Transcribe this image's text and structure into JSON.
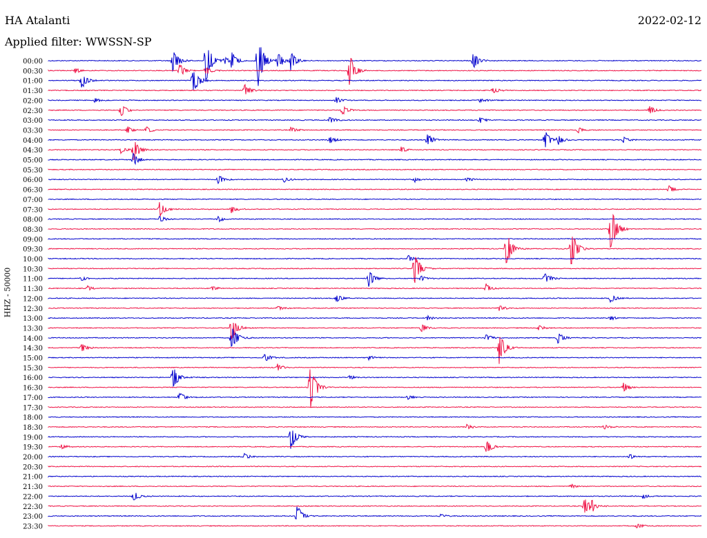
{
  "header": {
    "station": "HA Atalanti",
    "date": "2022-02-12",
    "filter": "Applied filter: WWSSN-SP"
  },
  "chart_data": {
    "type": "line",
    "title": "HA Atalanti",
    "subtitle": "Applied filter: WWSSN-SP",
    "ylabel": "HHZ - 50000",
    "xlabel": "",
    "colors": [
      "#0000cc",
      "#ee1144"
    ],
    "row_labels": [
      "00:00",
      "00:30",
      "01:00",
      "01:30",
      "02:00",
      "02:30",
      "03:00",
      "03:30",
      "04:00",
      "04:30",
      "05:00",
      "05:30",
      "06:00",
      "06:30",
      "07:00",
      "07:30",
      "08:00",
      "08:30",
      "09:00",
      "09:30",
      "10:00",
      "10:30",
      "11:00",
      "11:30",
      "12:00",
      "12:30",
      "13:00",
      "13:30",
      "14:00",
      "14:30",
      "15:00",
      "15:30",
      "16:00",
      "16:30",
      "17:00",
      "17:30",
      "18:00",
      "18:30",
      "19:00",
      "19:30",
      "20:00",
      "20:30",
      "21:00",
      "21:30",
      "22:00",
      "22:30",
      "23:00",
      "23:30"
    ],
    "events": [
      {
        "row": 0,
        "pos": 0.19,
        "amp": 18
      },
      {
        "row": 0,
        "pos": 0.24,
        "amp": 38
      },
      {
        "row": 0,
        "pos": 0.27,
        "amp": 6
      },
      {
        "row": 0,
        "pos": 0.28,
        "amp": 14
      },
      {
        "row": 0,
        "pos": 0.32,
        "amp": 45
      },
      {
        "row": 0,
        "pos": 0.35,
        "amp": 16
      },
      {
        "row": 0,
        "pos": 0.37,
        "amp": 18
      },
      {
        "row": 0,
        "pos": 0.65,
        "amp": 14
      },
      {
        "row": 1,
        "pos": 0.04,
        "amp": 5
      },
      {
        "row": 1,
        "pos": 0.2,
        "amp": 12
      },
      {
        "row": 1,
        "pos": 0.24,
        "amp": 8
      },
      {
        "row": 1,
        "pos": 0.46,
        "amp": 30
      },
      {
        "row": 2,
        "pos": 0.05,
        "amp": 14
      },
      {
        "row": 2,
        "pos": 0.22,
        "amp": 25
      },
      {
        "row": 3,
        "pos": 0.3,
        "amp": 10
      },
      {
        "row": 3,
        "pos": 0.68,
        "amp": 5
      },
      {
        "row": 4,
        "pos": 0.07,
        "amp": 4
      },
      {
        "row": 4,
        "pos": 0.44,
        "amp": 6
      },
      {
        "row": 4,
        "pos": 0.66,
        "amp": 4
      },
      {
        "row": 5,
        "pos": 0.11,
        "amp": 12
      },
      {
        "row": 5,
        "pos": 0.45,
        "amp": 8
      },
      {
        "row": 5,
        "pos": 0.92,
        "amp": 8
      },
      {
        "row": 6,
        "pos": 0.43,
        "amp": 6
      },
      {
        "row": 6,
        "pos": 0.66,
        "amp": 5
      },
      {
        "row": 7,
        "pos": 0.12,
        "amp": 6
      },
      {
        "row": 7,
        "pos": 0.15,
        "amp": 6
      },
      {
        "row": 7,
        "pos": 0.37,
        "amp": 6
      },
      {
        "row": 7,
        "pos": 0.81,
        "amp": 6
      },
      {
        "row": 8,
        "pos": 0.43,
        "amp": 6
      },
      {
        "row": 8,
        "pos": 0.58,
        "amp": 10
      },
      {
        "row": 8,
        "pos": 0.76,
        "amp": 14
      },
      {
        "row": 8,
        "pos": 0.78,
        "amp": 8
      },
      {
        "row": 8,
        "pos": 0.88,
        "amp": 5
      },
      {
        "row": 9,
        "pos": 0.11,
        "amp": 6
      },
      {
        "row": 9,
        "pos": 0.13,
        "amp": 18
      },
      {
        "row": 9,
        "pos": 0.54,
        "amp": 5
      },
      {
        "row": 10,
        "pos": 0.13,
        "amp": 10
      },
      {
        "row": 12,
        "pos": 0.26,
        "amp": 8
      },
      {
        "row": 12,
        "pos": 0.36,
        "amp": 5
      },
      {
        "row": 12,
        "pos": 0.56,
        "amp": 4
      },
      {
        "row": 12,
        "pos": 0.64,
        "amp": 4
      },
      {
        "row": 13,
        "pos": 0.95,
        "amp": 6
      },
      {
        "row": 15,
        "pos": 0.17,
        "amp": 12
      },
      {
        "row": 15,
        "pos": 0.28,
        "amp": 6
      },
      {
        "row": 16,
        "pos": 0.17,
        "amp": 5
      },
      {
        "row": 16,
        "pos": 0.26,
        "amp": 5
      },
      {
        "row": 17,
        "pos": 0.86,
        "amp": 40
      },
      {
        "row": 19,
        "pos": 0.7,
        "amp": 30
      },
      {
        "row": 19,
        "pos": 0.8,
        "amp": 30
      },
      {
        "row": 20,
        "pos": 0.55,
        "amp": 6
      },
      {
        "row": 21,
        "pos": 0.56,
        "amp": 30
      },
      {
        "row": 22,
        "pos": 0.05,
        "amp": 4
      },
      {
        "row": 22,
        "pos": 0.49,
        "amp": 14
      },
      {
        "row": 22,
        "pos": 0.57,
        "amp": 5
      },
      {
        "row": 22,
        "pos": 0.76,
        "amp": 10
      },
      {
        "row": 23,
        "pos": 0.06,
        "amp": 4
      },
      {
        "row": 23,
        "pos": 0.25,
        "amp": 4
      },
      {
        "row": 23,
        "pos": 0.67,
        "amp": 8
      },
      {
        "row": 24,
        "pos": 0.44,
        "amp": 8
      },
      {
        "row": 24,
        "pos": 0.86,
        "amp": 8
      },
      {
        "row": 25,
        "pos": 0.35,
        "amp": 5
      },
      {
        "row": 25,
        "pos": 0.69,
        "amp": 5
      },
      {
        "row": 26,
        "pos": 0.58,
        "amp": 4
      },
      {
        "row": 26,
        "pos": 0.86,
        "amp": 4
      },
      {
        "row": 27,
        "pos": 0.28,
        "amp": 20
      },
      {
        "row": 27,
        "pos": 0.57,
        "amp": 8
      },
      {
        "row": 27,
        "pos": 0.75,
        "amp": 5
      },
      {
        "row": 28,
        "pos": 0.28,
        "amp": 22
      },
      {
        "row": 28,
        "pos": 0.67,
        "amp": 6
      },
      {
        "row": 28,
        "pos": 0.78,
        "amp": 10
      },
      {
        "row": 29,
        "pos": 0.05,
        "amp": 8
      },
      {
        "row": 29,
        "pos": 0.69,
        "amp": 26
      },
      {
        "row": 30,
        "pos": 0.33,
        "amp": 8
      },
      {
        "row": 30,
        "pos": 0.49,
        "amp": 4
      },
      {
        "row": 31,
        "pos": 0.35,
        "amp": 6
      },
      {
        "row": 32,
        "pos": 0.19,
        "amp": 20
      },
      {
        "row": 32,
        "pos": 0.46,
        "amp": 4
      },
      {
        "row": 33,
        "pos": 0.4,
        "amp": 40
      },
      {
        "row": 33,
        "pos": 0.88,
        "amp": 8
      },
      {
        "row": 34,
        "pos": 0.2,
        "amp": 8
      },
      {
        "row": 34,
        "pos": 0.55,
        "amp": 4
      },
      {
        "row": 37,
        "pos": 0.64,
        "amp": 5
      },
      {
        "row": 37,
        "pos": 0.85,
        "amp": 4
      },
      {
        "row": 38,
        "pos": 0.37,
        "amp": 24
      },
      {
        "row": 39,
        "pos": 0.02,
        "amp": 4
      },
      {
        "row": 39,
        "pos": 0.67,
        "amp": 12
      },
      {
        "row": 40,
        "pos": 0.3,
        "amp": 5
      },
      {
        "row": 40,
        "pos": 0.89,
        "amp": 5
      },
      {
        "row": 43,
        "pos": 0.8,
        "amp": 4
      },
      {
        "row": 44,
        "pos": 0.13,
        "amp": 8
      },
      {
        "row": 44,
        "pos": 0.91,
        "amp": 4
      },
      {
        "row": 45,
        "pos": 0.82,
        "amp": 14
      },
      {
        "row": 45,
        "pos": 0.83,
        "amp": 10
      },
      {
        "row": 46,
        "pos": 0.38,
        "amp": 18
      },
      {
        "row": 46,
        "pos": 0.6,
        "amp": 4
      },
      {
        "row": 47,
        "pos": 0.9,
        "amp": 5
      }
    ],
    "grid": false,
    "legend": "none"
  }
}
